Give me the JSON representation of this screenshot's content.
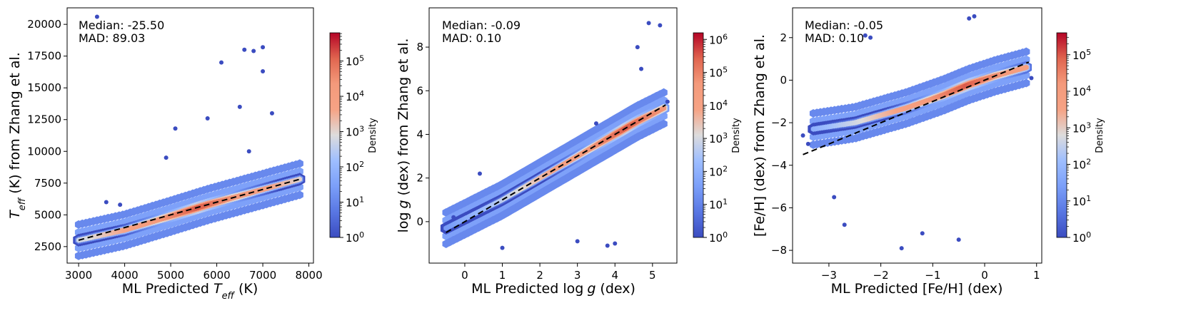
{
  "chart_data": [
    {
      "type": "hexbin-density",
      "title": "",
      "xlabel": "ML Predicted T_eff (K)",
      "ylabel": "T_eff (K) from Zhang et al.",
      "xlabel_parts": {
        "pre": "ML Predicted ",
        "sym": "T",
        "sub": "eff",
        "post": " (K)"
      },
      "ylabel_parts": {
        "pre": "",
        "sym": "T",
        "sub": "eff",
        "post": " (K) from Zhang et al."
      },
      "xlim": [
        2750,
        8100
      ],
      "ylim": [
        1200,
        21300
      ],
      "xticks": [
        3000,
        4000,
        5000,
        6000,
        7000,
        8000
      ],
      "yticks": [
        2500,
        5000,
        7500,
        10000,
        12500,
        15000,
        17500,
        20000
      ],
      "fit_line": {
        "x": [
          3000,
          7800
        ],
        "y": [
          3000,
          7800
        ],
        "style": "dashed"
      },
      "stats": {
        "median_label": "Median: -25.50",
        "mad_label": "MAD: 89.03",
        "median": -25.5,
        "mad": 89.03
      },
      "colorbar": {
        "label": "Density",
        "scale": "log",
        "ticks": [
          "10^0",
          "10^1",
          "10^2",
          "10^3",
          "10^4",
          "10^5"
        ],
        "max_exponent": 5.8
      },
      "density_ridge": {
        "x": [
          3000,
          4000,
          5000,
          5800,
          6500,
          7000,
          7800
        ],
        "y": [
          3000,
          3800,
          4900,
          5800,
          6500,
          7000,
          7800
        ],
        "peak_x": 5600
      },
      "outliers": [
        [
          3600,
          6000
        ],
        [
          3900,
          5800
        ],
        [
          4900,
          9500
        ],
        [
          5100,
          11800
        ],
        [
          5800,
          12600
        ],
        [
          6100,
          17000
        ],
        [
          6600,
          18000
        ],
        [
          6800,
          17900
        ],
        [
          7000,
          18200
        ],
        [
          7000,
          16300
        ],
        [
          6500,
          13500
        ],
        [
          7200,
          13000
        ],
        [
          6700,
          10000
        ],
        [
          3400,
          20600
        ]
      ]
    },
    {
      "type": "hexbin-density",
      "title": "",
      "xlabel": "ML Predicted log g (dex)",
      "ylabel": "log g (dex) from Zhang et al.",
      "xlabel_parts": {
        "pre": "ML Predicted log",
        "sym": "g",
        "sub": "",
        "post": " (dex)"
      },
      "ylabel_parts": {
        "pre": "log",
        "sym": "g",
        "sub": "",
        "post": " (dex) from Zhang et al."
      },
      "xlim": [
        -0.95,
        5.65
      ],
      "ylim": [
        -1.9,
        9.8
      ],
      "xticks": [
        0,
        1,
        2,
        3,
        4,
        5
      ],
      "yticks": [
        0,
        2,
        4,
        6,
        8
      ],
      "fit_line": {
        "x": [
          -0.5,
          5.35
        ],
        "y": [
          -0.5,
          5.35
        ],
        "style": "dashed"
      },
      "stats": {
        "median_label": "Median: -0.09",
        "mad_label": "MAD: 0.10",
        "median": -0.09,
        "mad": 0.1
      },
      "colorbar": {
        "label": "Density",
        "scale": "log",
        "ticks": [
          "10^0",
          "10^1",
          "10^2",
          "10^3",
          "10^4",
          "10^5",
          "10^6"
        ],
        "max_exponent": 6.2
      },
      "density_ridge": {
        "x": [
          -0.5,
          1.0,
          2.0,
          3.0,
          4.0,
          4.6,
          5.3
        ],
        "y": [
          -0.3,
          1.0,
          2.0,
          3.0,
          4.0,
          4.6,
          5.2
        ],
        "peak_x": 4.3
      },
      "outliers": [
        [
          4.6,
          8.0
        ],
        [
          4.9,
          9.1
        ],
        [
          5.2,
          9.0
        ],
        [
          4.7,
          7.0
        ],
        [
          3.8,
          -1.1
        ],
        [
          4.0,
          -1.0
        ],
        [
          3.0,
          -0.9
        ],
        [
          1.0,
          -1.2
        ],
        [
          -0.3,
          0.2
        ],
        [
          0.4,
          2.2
        ],
        [
          5.4,
          5.5
        ],
        [
          3.5,
          4.5
        ]
      ]
    },
    {
      "type": "hexbin-density",
      "title": "",
      "xlabel": "ML Predicted [Fe/H] (dex)",
      "ylabel": "[Fe/H] (dex) from Zhang et al.",
      "xlabel_parts": {
        "pre": "ML Predicted [Fe/H] (dex)",
        "sym": "",
        "sub": "",
        "post": ""
      },
      "ylabel_parts": {
        "pre": "[Fe/H] (dex) from Zhang et al.",
        "sym": "",
        "sub": "",
        "post": ""
      },
      "xlim": [
        -3.7,
        1.1
      ],
      "ylim": [
        -8.6,
        3.4
      ],
      "xticks": [
        -3,
        -2,
        -1,
        0,
        1
      ],
      "yticks": [
        -8,
        -6,
        -4,
        -2,
        0,
        2
      ],
      "fit_line": {
        "x": [
          -3.5,
          0.85
        ],
        "y": [
          -3.5,
          0.85
        ],
        "style": "dashed"
      },
      "stats": {
        "median_label": "Median: -0.05",
        "mad_label": "MAD: 0.10",
        "median": -0.05,
        "mad": 0.1
      },
      "colorbar": {
        "label": "Density",
        "scale": "log",
        "ticks": [
          "10^0",
          "10^1",
          "10^2",
          "10^3",
          "10^4",
          "10^5"
        ],
        "max_exponent": 5.6
      },
      "density_ridge": {
        "x": [
          -3.3,
          -2.5,
          -1.5,
          -0.8,
          -0.3,
          0.2,
          0.8
        ],
        "y": [
          -2.3,
          -2.0,
          -1.3,
          -0.7,
          -0.2,
          0.2,
          0.6
        ],
        "peak_x": -0.35
      },
      "outliers": [
        [
          -2.3,
          2.1
        ],
        [
          -2.2,
          2.0
        ],
        [
          -0.2,
          3.0
        ],
        [
          -0.3,
          2.9
        ],
        [
          -1.6,
          -7.9
        ],
        [
          -1.2,
          -7.2
        ],
        [
          -2.7,
          -6.8
        ],
        [
          -3.4,
          -3.0
        ],
        [
          -0.5,
          -7.5
        ],
        [
          0.9,
          0.1
        ],
        [
          -3.5,
          -2.6
        ],
        [
          -2.9,
          -5.5
        ]
      ]
    }
  ]
}
